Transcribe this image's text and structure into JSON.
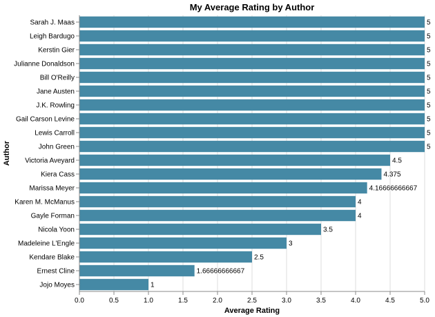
{
  "chart_data": {
    "type": "bar",
    "orientation": "horizontal",
    "title": "My Average Rating by Author",
    "xlabel": "Average Rating",
    "ylabel": "Author",
    "xlim": [
      0,
      5
    ],
    "x_ticks": [
      "0.0",
      "0.5",
      "1.0",
      "1.5",
      "2.0",
      "2.5",
      "3.0",
      "3.5",
      "4.0",
      "4.5",
      "5.0"
    ],
    "grid": true,
    "bar_color": "#4589a5",
    "categories": [
      "Sarah J. Maas",
      "Leigh Bardugo",
      "Kerstin Gier",
      "Julianne Donaldson",
      "Bill O'Reilly",
      "Jane Austen",
      "J.K. Rowling",
      "Gail Carson Levine",
      "Lewis Carroll",
      "John Green",
      "Victoria Aveyard",
      "Kiera Cass",
      "Marissa Meyer",
      "Karen M. McManus",
      "Gayle Forman",
      "Nicola Yoon",
      "Madeleine L'Engle",
      "Kendare Blake",
      "Ernest Cline",
      "Jojo Moyes"
    ],
    "values": [
      5,
      5,
      5,
      5,
      5,
      5,
      5,
      5,
      5,
      5,
      4.5,
      4.375,
      4.16666666667,
      4,
      4,
      3.5,
      3,
      2.5,
      1.66666666667,
      1
    ],
    "value_labels": [
      "5",
      "5",
      "5",
      "5",
      "5",
      "5",
      "5",
      "5",
      "5",
      "5",
      "4.5",
      "4.375",
      "4.16666666667",
      "4",
      "4",
      "3.5",
      "3",
      "2.5",
      "1.66666666667",
      "1"
    ]
  }
}
